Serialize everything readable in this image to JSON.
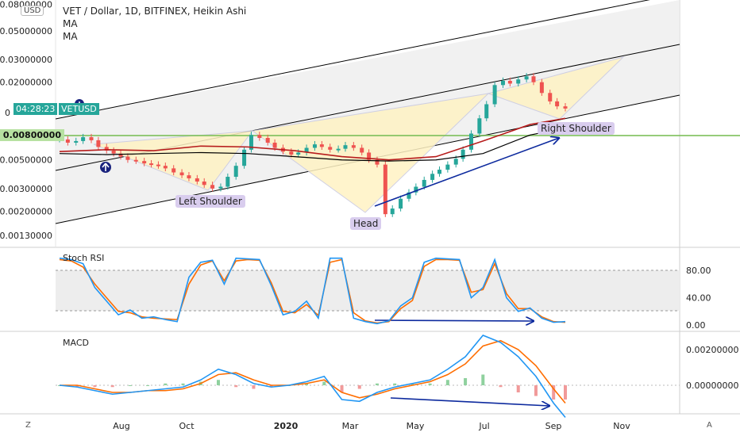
{
  "header": {
    "title": "VET / Dollar, 1D, BITFINEX, Heikin Ashi",
    "indicator1": "MA",
    "indicator2": "MA",
    "currency_badge": "USD"
  },
  "price_tags": {
    "countdown": "04:28:23",
    "symbol": "VETUSD",
    "level": "0.00800000",
    "countdown_color": "#26a69a",
    "level_color": "#b7e1a1"
  },
  "labels": {
    "left_shoulder": "Left Shoulder",
    "head": "Head",
    "right_shoulder": "Right Shoulder"
  },
  "panes": {
    "stoch_title": "Stoch RSI",
    "macd_title": "MACD"
  },
  "corners": {
    "bottom_left": "Z",
    "bottom_right": "A"
  },
  "chart_data": {
    "type": "line",
    "price_axis": {
      "scale": "log",
      "tick_labels": [
        "0.08000000",
        "0.05000000",
        "0.03000000",
        "0.02000000",
        "0.00800000",
        "0.00500000",
        "0.00300000",
        "0.00200000",
        "0.00130000"
      ],
      "partial_label": "0"
    },
    "time_axis": {
      "tick_labels": [
        "Aug",
        "Oct",
        "2020",
        "Mar",
        "May",
        "Jul",
        "Sep",
        "Nov"
      ]
    },
    "price_series": {
      "x": [
        0,
        7,
        14,
        20,
        27,
        33,
        40,
        46,
        52,
        58,
        65,
        72,
        78,
        84,
        90,
        97,
        104,
        110,
        117,
        123,
        130,
        137,
        143,
        150,
        157,
        163,
        170,
        177,
        183,
        190,
        197,
        203,
        210,
        217,
        223,
        230,
        237,
        243,
        250,
        257,
        263,
        270,
        277,
        283,
        290,
        297,
        303,
        310,
        317,
        323,
        330,
        337,
        343,
        350,
        357,
        363,
        370,
        377,
        383,
        390,
        397,
        403,
        410,
        417,
        423,
        430
      ],
      "close": [
        0.0072,
        0.0068,
        0.007,
        0.0075,
        0.0071,
        0.0063,
        0.0059,
        0.0056,
        0.0053,
        0.005,
        0.0049,
        0.0047,
        0.0046,
        0.0045,
        0.0043,
        0.004,
        0.0038,
        0.0036,
        0.0034,
        0.0032,
        0.003,
        0.0031,
        0.0037,
        0.0045,
        0.006,
        0.0078,
        0.0074,
        0.0068,
        0.0062,
        0.0058,
        0.0055,
        0.0057,
        0.0062,
        0.0066,
        0.0063,
        0.006,
        0.0061,
        0.0065,
        0.0062,
        0.0057,
        0.005,
        0.0046,
        0.0019,
        0.0021,
        0.0025,
        0.0028,
        0.0031,
        0.0035,
        0.0039,
        0.0042,
        0.0046,
        0.0051,
        0.006,
        0.008,
        0.0105,
        0.0135,
        0.019,
        0.0205,
        0.0195,
        0.021,
        0.0222,
        0.02,
        0.0165,
        0.0142,
        0.013,
        0.0125
      ]
    },
    "ma_long": {
      "x": [
        0,
        40,
        80,
        120,
        160,
        200,
        240,
        280,
        320,
        360,
        400,
        430
      ],
      "values": [
        0.0056,
        0.0055,
        0.0056,
        0.0057,
        0.0056,
        0.0053,
        0.005,
        0.0049,
        0.005,
        0.0056,
        0.0078,
        0.0088
      ]
    },
    "ma_mid": {
      "x": [
        0,
        40,
        80,
        120,
        160,
        200,
        240,
        280,
        320,
        360,
        400,
        430
      ],
      "values": [
        0.0058,
        0.006,
        0.0059,
        0.0064,
        0.0063,
        0.0059,
        0.0053,
        0.005,
        0.0053,
        0.007,
        0.0094,
        0.0105
      ]
    },
    "stoch_rsi": {
      "axis_ticks": [
        "80.00",
        "40.00",
        "0.00"
      ],
      "x": [
        0,
        10,
        20,
        30,
        40,
        50,
        60,
        70,
        80,
        90,
        100,
        110,
        120,
        130,
        140,
        150,
        160,
        170,
        180,
        190,
        200,
        210,
        220,
        230,
        240,
        250,
        260,
        270,
        280,
        290,
        300,
        310,
        320,
        330,
        340,
        350,
        360,
        370,
        380,
        390,
        400,
        410,
        420,
        430
      ],
      "k": [
        98,
        96,
        90,
        55,
        35,
        15,
        22,
        10,
        12,
        8,
        5,
        70,
        92,
        95,
        60,
        98,
        97,
        96,
        58,
        15,
        20,
        35,
        10,
        98,
        98,
        10,
        5,
        2,
        6,
        28,
        40,
        92,
        98,
        97,
        96,
        40,
        55,
        96,
        40,
        20,
        25,
        10,
        4,
        5
      ],
      "d": [
        96,
        94,
        85,
        60,
        40,
        20,
        18,
        12,
        10,
        9,
        8,
        60,
        88,
        94,
        65,
        94,
        96,
        95,
        62,
        20,
        18,
        30,
        14,
        92,
        96,
        18,
        6,
        3,
        5,
        24,
        36,
        86,
        96,
        96,
        95,
        48,
        52,
        90,
        46,
        24,
        24,
        12,
        5,
        4
      ]
    },
    "macd": {
      "axis_ticks": [
        "0.00200000",
        "0.00000000"
      ],
      "x": [
        0,
        15,
        30,
        45,
        60,
        75,
        90,
        105,
        120,
        135,
        150,
        165,
        180,
        195,
        210,
        225,
        240,
        255,
        270,
        285,
        300,
        315,
        330,
        345,
        360,
        375,
        390,
        405,
        420,
        430
      ],
      "macd": [
        0.0,
        -0.0001,
        -0.0003,
        -0.0005,
        -0.0004,
        -0.0003,
        -0.0002,
        -0.0001,
        0.0003,
        0.0009,
        0.0006,
        0.0001,
        -0.0001,
        0.0,
        0.0002,
        0.0005,
        -0.0008,
        -0.0009,
        -0.0004,
        -0.0001,
        0.0001,
        0.0003,
        0.0009,
        0.0016,
        0.0028,
        0.0024,
        0.0016,
        0.0005,
        -0.001,
        -0.0018
      ],
      "signal": [
        0.0,
        0.0,
        -0.0002,
        -0.0004,
        -0.0004,
        -0.0003,
        -0.0003,
        -0.0002,
        0.0001,
        0.0006,
        0.0007,
        0.0003,
        0.0,
        0.0,
        0.0001,
        0.0003,
        -0.0004,
        -0.0007,
        -0.0005,
        -0.0002,
        0.0,
        0.0002,
        0.0006,
        0.0012,
        0.0022,
        0.0025,
        0.002,
        0.0011,
        -0.0002,
        -0.001
      ]
    },
    "colors": {
      "candle_up": "#26a69a",
      "candle_down": "#ef5350",
      "stoch_k": "#2196f3",
      "stoch_d": "#ff6d00",
      "ma_long": "#000000",
      "ma_mid": "#b71c1c",
      "channel": "#000000",
      "pattern_fill": "#fff3c4",
      "arrow": "#0d2a9e",
      "support_line": "#7cc05a"
    }
  }
}
